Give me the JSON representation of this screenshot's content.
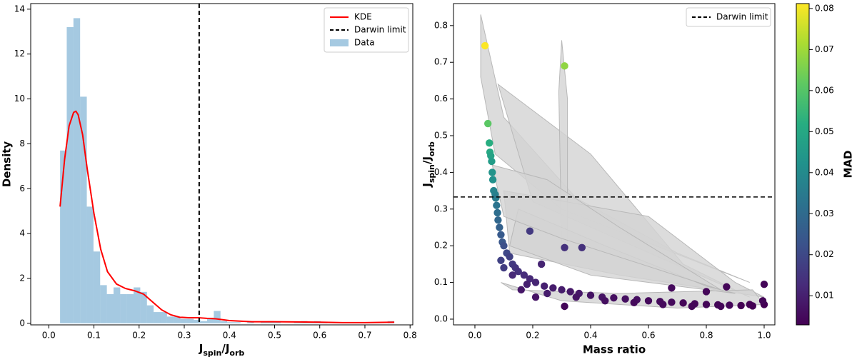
{
  "chart_data": [
    {
      "type": "histogram",
      "ylabel": "Density",
      "xlabel_parts": [
        "J",
        "spin",
        "/J",
        "orb"
      ],
      "xlim": [
        -0.04,
        0.806
      ],
      "ylim": [
        -0.07,
        14.25
      ],
      "xticks": [
        {
          "value": 0,
          "label": "0.0"
        },
        0.1,
        0.2,
        0.3,
        0.4,
        0.5,
        0.6,
        0.7,
        0.8
      ],
      "yticks": [
        0,
        2,
        4,
        6,
        8,
        10,
        12,
        14
      ],
      "name": "Data",
      "color": "#1f77b4",
      "alpha": 0.4,
      "bins": [
        0.025,
        0.0398,
        0.0546,
        0.0694,
        0.0842,
        0.099,
        0.1138,
        0.1286,
        0.1434,
        0.1582,
        0.173,
        0.1878,
        0.2026,
        0.2174,
        0.2322,
        0.247,
        0.2618,
        0.2766,
        0.2914,
        0.3062,
        0.321,
        0.3358,
        0.3506,
        0.3654,
        0.3802,
        0.395,
        0.4098,
        0.4246,
        0.4394,
        0.4542,
        0.469,
        0.4838,
        0.4986,
        0.5134,
        0.5282,
        0.543,
        0.5578,
        0.5726,
        0.5874,
        0.6022,
        0.617,
        0.6318,
        0.6466,
        0.6614,
        0.6762,
        0.691,
        0.7058,
        0.7206,
        0.7354,
        0.7502,
        0.765
      ],
      "counts": [
        7.7,
        13.2,
        13.6,
        10.1,
        5.2,
        3.2,
        1.7,
        1.3,
        1.6,
        1.3,
        1.3,
        1.6,
        1.4,
        0.8,
        0.5,
        0.5,
        0.3,
        0.3,
        0.2,
        0.2,
        0.15,
        0.1,
        0.25,
        0.55,
        0.1,
        0.05,
        0.05,
        0,
        0.05,
        0,
        0.05,
        0.1,
        0.05,
        0,
        0,
        0.05,
        0.1,
        0.05,
        0.1,
        0.05,
        0,
        0,
        0,
        0,
        0,
        0,
        0,
        0,
        0,
        0.1
      ],
      "kde": {
        "name": "KDE",
        "color": "#ff0000",
        "x": [
          0.025,
          0.035,
          0.045,
          0.055,
          0.06,
          0.065,
          0.075,
          0.085,
          0.1,
          0.115,
          0.13,
          0.15,
          0.17,
          0.19,
          0.21,
          0.23,
          0.25,
          0.27,
          0.29,
          0.31,
          0.33,
          0.35,
          0.37,
          0.4,
          0.45,
          0.5,
          0.55,
          0.6,
          0.65,
          0.7,
          0.765
        ],
        "y": [
          5.2,
          7.3,
          8.8,
          9.4,
          9.45,
          9.3,
          8.4,
          6.9,
          4.9,
          3.3,
          2.3,
          1.75,
          1.55,
          1.45,
          1.3,
          0.95,
          0.6,
          0.38,
          0.27,
          0.25,
          0.25,
          0.22,
          0.2,
          0.12,
          0.07,
          0.07,
          0.06,
          0.05,
          0.03,
          0.03,
          0.05
        ]
      },
      "reference_line": {
        "name": "Darwin limit",
        "value": 0.333,
        "orientation": "vertical",
        "color": "#000000"
      },
      "legend": "upper right"
    },
    {
      "type": "scatter",
      "xlabel": "Mass ratio",
      "ylabel_parts": [
        "J",
        "spin",
        "/J",
        "orb"
      ],
      "xlim": [
        -0.074,
        1.037
      ],
      "ylim": [
        -0.0156,
        0.86
      ],
      "xticks": [
        {
          "value": 0,
          "label": "0.0"
        },
        0.2,
        0.4,
        0.6,
        0.8,
        {
          "value": 1,
          "label": "1.0"
        }
      ],
      "yticks": [
        {
          "value": 0,
          "label": "0.0"
        },
        0.1,
        0.2,
        0.3,
        0.4,
        0.5,
        0.6,
        0.7,
        0.8
      ],
      "x": [
        0.035,
        0.31,
        0.045,
        0.05,
        0.052,
        0.055,
        0.058,
        0.06,
        0.062,
        0.065,
        0.07,
        0.072,
        0.075,
        0.078,
        0.08,
        0.085,
        0.09,
        0.095,
        0.1,
        0.11,
        0.12,
        0.13,
        0.14,
        0.15,
        0.17,
        0.19,
        0.21,
        0.24,
        0.27,
        0.3,
        0.33,
        0.36,
        0.4,
        0.44,
        0.48,
        0.52,
        0.56,
        0.6,
        0.64,
        0.68,
        0.72,
        0.76,
        0.8,
        0.84,
        0.88,
        0.92,
        0.96,
        1.0,
        1.0,
        0.87,
        0.8,
        0.68,
        0.19,
        0.31,
        0.37,
        0.23,
        0.16,
        0.31,
        0.21,
        0.995,
        0.13,
        0.09,
        0.1,
        0.18,
        0.25,
        0.35,
        0.45,
        0.55,
        0.65,
        0.75,
        0.85,
        0.95
      ],
      "y": [
        0.745,
        0.69,
        0.533,
        0.48,
        0.455,
        0.445,
        0.43,
        0.4,
        0.38,
        0.35,
        0.34,
        0.33,
        0.31,
        0.29,
        0.27,
        0.25,
        0.23,
        0.21,
        0.2,
        0.18,
        0.17,
        0.15,
        0.14,
        0.13,
        0.12,
        0.11,
        0.1,
        0.09,
        0.085,
        0.08,
        0.075,
        0.07,
        0.065,
        0.06,
        0.058,
        0.055,
        0.053,
        0.05,
        0.048,
        0.046,
        0.044,
        0.042,
        0.04,
        0.039,
        0.038,
        0.037,
        0.036,
        0.04,
        0.095,
        0.088,
        0.075,
        0.085,
        0.24,
        0.195,
        0.195,
        0.15,
        0.08,
        0.035,
        0.06,
        0.05,
        0.12,
        0.16,
        0.14,
        0.095,
        0.07,
        0.06,
        0.05,
        0.045,
        0.04,
        0.035,
        0.035,
        0.04
      ],
      "c": [
        0.081,
        0.068,
        0.061,
        0.052,
        0.05,
        0.048,
        0.046,
        0.043,
        0.042,
        0.038,
        0.037,
        0.035,
        0.033,
        0.031,
        0.029,
        0.027,
        0.025,
        0.024,
        0.022,
        0.02,
        0.018,
        0.016,
        0.015,
        0.014,
        0.013,
        0.012,
        0.011,
        0.01,
        0.009,
        0.009,
        0.008,
        0.008,
        0.007,
        0.007,
        0.006,
        0.006,
        0.006,
        0.005,
        0.005,
        0.005,
        0.004,
        0.004,
        0.004,
        0.004,
        0.004,
        0.003,
        0.003,
        0.003,
        0.004,
        0.004,
        0.004,
        0.005,
        0.016,
        0.014,
        0.014,
        0.011,
        0.008,
        0.004,
        0.007,
        0.004,
        0.012,
        0.018,
        0.017,
        0.01,
        0.009,
        0.007,
        0.006,
        0.005,
        0.005,
        0.004,
        0.004,
        0.003
      ],
      "colormap": "viridis",
      "region_color": "#d3d3d3",
      "regions": [
        {
          "x": [
            0.02,
            0.1,
            0.35,
            0.7,
            0.95,
            0.3,
            0.07,
            0.02
          ],
          "y": [
            0.83,
            0.55,
            0.33,
            0.18,
            0.1,
            0.3,
            0.45,
            0.66
          ]
        },
        {
          "x": [
            0.08,
            0.4,
            0.72,
            0.95,
            0.2
          ],
          "y": [
            0.64,
            0.45,
            0.15,
            0.06,
            0.32
          ]
        },
        {
          "x": [
            0.3,
            0.32,
            0.32,
            0.3,
            0.29
          ],
          "y": [
            0.76,
            0.6,
            0.18,
            0.2,
            0.62
          ]
        },
        {
          "x": [
            0.1,
            0.6,
            0.9,
            1.0,
            0.5,
            0.12
          ],
          "y": [
            0.35,
            0.28,
            0.1,
            0.06,
            0.12,
            0.18
          ]
        },
        {
          "x": [
            0.09,
            0.3,
            0.7,
            1.0,
            0.96,
            0.5,
            0.13
          ],
          "y": [
            0.1,
            0.05,
            0.03,
            0.04,
            0.08,
            0.07,
            0.08
          ]
        },
        {
          "x": [
            0.15,
            0.45,
            0.8,
            0.9,
            0.4,
            0.12
          ],
          "y": [
            0.3,
            0.2,
            0.09,
            0.07,
            0.12,
            0.2
          ]
        },
        {
          "x": [
            0.06,
            0.25,
            0.5,
            0.85,
            0.3,
            0.1
          ],
          "y": [
            0.42,
            0.38,
            0.25,
            0.08,
            0.22,
            0.28
          ]
        }
      ],
      "reference_line": {
        "name": "Darwin limit",
        "value": 0.333,
        "orientation": "horizontal",
        "color": "#000000"
      },
      "legend": "upper right",
      "colorbar": {
        "label": "MAD",
        "lim": [
          0.0029,
          0.0812
        ],
        "ticks": [
          0.01,
          0.02,
          0.03,
          0.04,
          0.05,
          0.06,
          0.07,
          0.08
        ]
      }
    }
  ]
}
